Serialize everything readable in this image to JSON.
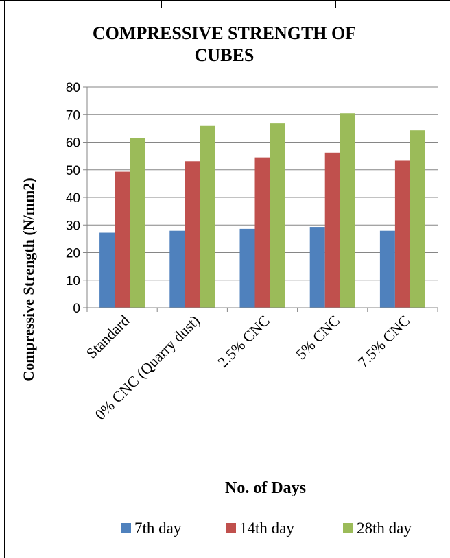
{
  "chart_data": {
    "type": "bar",
    "title": "COMPRESSIVE STRENGTH OF CUBES",
    "title_lines": [
      "COMPRESSIVE STRENGTH OF",
      "CUBES"
    ],
    "xlabel": "No. of Days",
    "ylabel": "Compressive Strength (N/mm2)",
    "categories": [
      "Standard",
      "0% CNC (Quarry dust)",
      "2.5% CNC",
      "5% CNC",
      "7.5% CNC"
    ],
    "series": [
      {
        "name": "7th day",
        "color": "#4F81BD",
        "values": [
          27.2,
          27.9,
          28.6,
          29.3,
          27.9
        ]
      },
      {
        "name": "14th day",
        "color": "#C0504D",
        "values": [
          49.3,
          53.1,
          54.5,
          56.2,
          53.3
        ]
      },
      {
        "name": "28th day",
        "color": "#9BBB59",
        "values": [
          61.4,
          65.9,
          66.8,
          70.5,
          64.3
        ]
      }
    ],
    "ylim": [
      0,
      80
    ],
    "yticks": [
      0,
      10,
      20,
      30,
      40,
      50,
      60,
      70,
      80
    ],
    "grid": true,
    "legend_position": "bottom"
  }
}
